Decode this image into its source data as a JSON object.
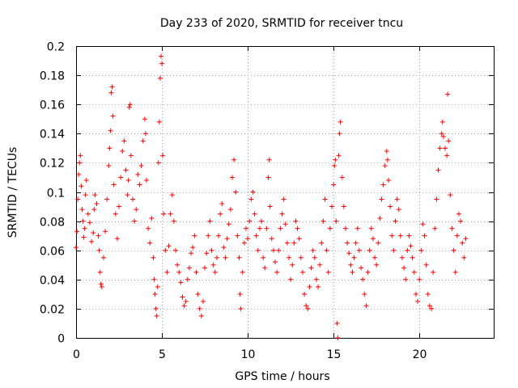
{
  "chart_data": {
    "type": "scatter",
    "title": "Day 233 of 2020, SRMTID for receiver tncu",
    "xlabel": "GPS time / hours",
    "ylabel": "SRMTID / TECUs",
    "xlim": [
      0,
      24.33
    ],
    "ylim": [
      0,
      0.2
    ],
    "xticks": [
      0,
      5,
      10,
      15,
      20
    ],
    "yticks": [
      0,
      0.02,
      0.04,
      0.06,
      0.08,
      0.1,
      0.12,
      0.14,
      0.16,
      0.18,
      0.2
    ],
    "xtick_labels": [
      "0",
      "5",
      "10",
      "15",
      "20"
    ],
    "ytick_labels": [
      "0",
      "0.02",
      "0.04",
      "0.06",
      "0.08",
      "0.1",
      "0.12",
      "0.14",
      "0.16",
      "0.18",
      "0.2"
    ],
    "grid": true,
    "marker": "+",
    "marker_color": "#ff0000",
    "x_range_of_data": [
      0,
      22.7
    ],
    "series": [
      {
        "values": [
          [
            0.0,
            0.062
          ],
          [
            0.05,
            0.073
          ],
          [
            0.1,
            0.095
          ],
          [
            0.15,
            0.112
          ],
          [
            0.2,
            0.12
          ],
          [
            0.25,
            0.125
          ],
          [
            0.3,
            0.104
          ],
          [
            0.35,
            0.088
          ],
          [
            0.4,
            0.08
          ],
          [
            0.45,
            0.069
          ],
          [
            0.5,
            0.075
          ],
          [
            0.55,
            0.098
          ],
          [
            0.6,
            0.108
          ],
          [
            0.7,
            0.085
          ],
          [
            0.8,
            0.079
          ],
          [
            0.9,
            0.066
          ],
          [
            1.0,
            0.072
          ],
          [
            1.05,
            0.088
          ],
          [
            1.1,
            0.098
          ],
          [
            1.2,
            0.092
          ],
          [
            1.3,
            0.07
          ],
          [
            1.35,
            0.06
          ],
          [
            1.4,
            0.045
          ],
          [
            1.45,
            0.037
          ],
          [
            1.5,
            0.035
          ],
          [
            1.6,
            0.055
          ],
          [
            1.7,
            0.073
          ],
          [
            1.8,
            0.095
          ],
          [
            1.9,
            0.118
          ],
          [
            1.95,
            0.13
          ],
          [
            2.0,
            0.142
          ],
          [
            2.05,
            0.168
          ],
          [
            2.1,
            0.172
          ],
          [
            2.15,
            0.152
          ],
          [
            2.2,
            0.105
          ],
          [
            2.3,
            0.085
          ],
          [
            2.4,
            0.068
          ],
          [
            2.5,
            0.09
          ],
          [
            2.6,
            0.11
          ],
          [
            2.7,
            0.128
          ],
          [
            2.8,
            0.135
          ],
          [
            2.9,
            0.115
          ],
          [
            3.0,
            0.098
          ],
          [
            3.05,
            0.108
          ],
          [
            3.1,
            0.158
          ],
          [
            3.15,
            0.16
          ],
          [
            3.2,
            0.125
          ],
          [
            3.3,
            0.095
          ],
          [
            3.4,
            0.08
          ],
          [
            3.5,
            0.088
          ],
          [
            3.6,
            0.112
          ],
          [
            3.7,
            0.105
          ],
          [
            3.8,
            0.118
          ],
          [
            3.9,
            0.135
          ],
          [
            4.0,
            0.15
          ],
          [
            4.05,
            0.14
          ],
          [
            4.1,
            0.108
          ],
          [
            4.2,
            0.075
          ],
          [
            4.3,
            0.065
          ],
          [
            4.4,
            0.082
          ],
          [
            4.5,
            0.055
          ],
          [
            4.55,
            0.04
          ],
          [
            4.6,
            0.03
          ],
          [
            4.65,
            0.02
          ],
          [
            4.7,
            0.015
          ],
          [
            4.75,
            0.035
          ],
          [
            4.8,
            0.12
          ],
          [
            4.85,
            0.148
          ],
          [
            4.9,
            0.178
          ],
          [
            4.95,
            0.193
          ],
          [
            5.0,
            0.188
          ],
          [
            5.05,
            0.125
          ],
          [
            5.1,
            0.085
          ],
          [
            5.2,
            0.06
          ],
          [
            5.3,
            0.045
          ],
          [
            5.4,
            0.063
          ],
          [
            5.5,
            0.085
          ],
          [
            5.6,
            0.098
          ],
          [
            5.7,
            0.08
          ],
          [
            5.8,
            0.06
          ],
          [
            5.9,
            0.05
          ],
          [
            6.0,
            0.045
          ],
          [
            6.1,
            0.038
          ],
          [
            6.2,
            0.028
          ],
          [
            6.3,
            0.022
          ],
          [
            6.4,
            0.025
          ],
          [
            6.5,
            0.04
          ],
          [
            6.6,
            0.048
          ],
          [
            6.7,
            0.058
          ],
          [
            6.8,
            0.062
          ],
          [
            6.9,
            0.07
          ],
          [
            7.0,
            0.045
          ],
          [
            7.1,
            0.03
          ],
          [
            7.2,
            0.02
          ],
          [
            7.3,
            0.015
          ],
          [
            7.4,
            0.025
          ],
          [
            7.5,
            0.048
          ],
          [
            7.6,
            0.058
          ],
          [
            7.7,
            0.07
          ],
          [
            7.8,
            0.08
          ],
          [
            7.9,
            0.06
          ],
          [
            8.0,
            0.05
          ],
          [
            8.1,
            0.045
          ],
          [
            8.2,
            0.055
          ],
          [
            8.3,
            0.07
          ],
          [
            8.4,
            0.085
          ],
          [
            8.5,
            0.092
          ],
          [
            8.6,
            0.062
          ],
          [
            8.7,
            0.055
          ],
          [
            8.8,
            0.068
          ],
          [
            8.9,
            0.078
          ],
          [
            9.0,
            0.088
          ],
          [
            9.1,
            0.11
          ],
          [
            9.2,
            0.122
          ],
          [
            9.3,
            0.1
          ],
          [
            9.4,
            0.07
          ],
          [
            9.5,
            0.055
          ],
          [
            9.55,
            0.03
          ],
          [
            9.6,
            0.02
          ],
          [
            9.7,
            0.045
          ],
          [
            9.8,
            0.065
          ],
          [
            9.9,
            0.075
          ],
          [
            10.0,
            0.068
          ],
          [
            10.1,
            0.08
          ],
          [
            10.2,
            0.095
          ],
          [
            10.3,
            0.1
          ],
          [
            10.4,
            0.085
          ],
          [
            10.5,
            0.07
          ],
          [
            10.6,
            0.06
          ],
          [
            10.7,
            0.075
          ],
          [
            10.8,
            0.08
          ],
          [
            10.9,
            0.055
          ],
          [
            11.0,
            0.048
          ],
          [
            11.1,
            0.075
          ],
          [
            11.2,
            0.11
          ],
          [
            11.25,
            0.122
          ],
          [
            11.3,
            0.09
          ],
          [
            11.4,
            0.068
          ],
          [
            11.5,
            0.06
          ],
          [
            11.6,
            0.052
          ],
          [
            11.7,
            0.045
          ],
          [
            11.8,
            0.06
          ],
          [
            11.9,
            0.075
          ],
          [
            12.0,
            0.085
          ],
          [
            12.1,
            0.095
          ],
          [
            12.2,
            0.078
          ],
          [
            12.3,
            0.065
          ],
          [
            12.4,
            0.055
          ],
          [
            12.5,
            0.04
          ],
          [
            12.6,
            0.05
          ],
          [
            12.7,
            0.065
          ],
          [
            12.8,
            0.08
          ],
          [
            12.9,
            0.075
          ],
          [
            13.0,
            0.068
          ],
          [
            13.1,
            0.055
          ],
          [
            13.2,
            0.045
          ],
          [
            13.3,
            0.03
          ],
          [
            13.4,
            0.022
          ],
          [
            13.5,
            0.02
          ],
          [
            13.6,
            0.035
          ],
          [
            13.7,
            0.048
          ],
          [
            13.8,
            0.06
          ],
          [
            13.9,
            0.055
          ],
          [
            14.0,
            0.04
          ],
          [
            14.1,
            0.035
          ],
          [
            14.2,
            0.05
          ],
          [
            14.3,
            0.065
          ],
          [
            14.4,
            0.08
          ],
          [
            14.5,
            0.095
          ],
          [
            14.6,
            0.06
          ],
          [
            14.7,
            0.045
          ],
          [
            14.8,
            0.075
          ],
          [
            14.9,
            0.09
          ],
          [
            15.0,
            0.105
          ],
          [
            15.05,
            0.118
          ],
          [
            15.1,
            0.122
          ],
          [
            15.15,
            0.08
          ],
          [
            15.2,
            0.01
          ],
          [
            15.25,
            0.0
          ],
          [
            15.3,
            0.125
          ],
          [
            15.35,
            0.14
          ],
          [
            15.4,
            0.148
          ],
          [
            15.5,
            0.11
          ],
          [
            15.6,
            0.09
          ],
          [
            15.7,
            0.075
          ],
          [
            15.8,
            0.065
          ],
          [
            15.9,
            0.058
          ],
          [
            16.0,
            0.05
          ],
          [
            16.1,
            0.045
          ],
          [
            16.2,
            0.055
          ],
          [
            16.3,
            0.065
          ],
          [
            16.4,
            0.075
          ],
          [
            16.5,
            0.06
          ],
          [
            16.6,
            0.048
          ],
          [
            16.7,
            0.04
          ],
          [
            16.8,
            0.03
          ],
          [
            16.9,
            0.022
          ],
          [
            17.0,
            0.045
          ],
          [
            17.1,
            0.06
          ],
          [
            17.2,
            0.075
          ],
          [
            17.3,
            0.068
          ],
          [
            17.4,
            0.055
          ],
          [
            17.5,
            0.05
          ],
          [
            17.6,
            0.065
          ],
          [
            17.7,
            0.082
          ],
          [
            17.8,
            0.095
          ],
          [
            17.9,
            0.105
          ],
          [
            18.0,
            0.118
          ],
          [
            18.1,
            0.128
          ],
          [
            18.15,
            0.122
          ],
          [
            18.2,
            0.108
          ],
          [
            18.3,
            0.09
          ],
          [
            18.4,
            0.07
          ],
          [
            18.5,
            0.06
          ],
          [
            18.6,
            0.08
          ],
          [
            18.7,
            0.095
          ],
          [
            18.8,
            0.088
          ],
          [
            18.9,
            0.07
          ],
          [
            19.0,
            0.055
          ],
          [
            19.1,
            0.048
          ],
          [
            19.2,
            0.04
          ],
          [
            19.3,
            0.06
          ],
          [
            19.4,
            0.07
          ],
          [
            19.5,
            0.063
          ],
          [
            19.6,
            0.055
          ],
          [
            19.7,
            0.045
          ],
          [
            19.8,
            0.03
          ],
          [
            19.9,
            0.025
          ],
          [
            20.0,
            0.04
          ],
          [
            20.1,
            0.06
          ],
          [
            20.2,
            0.078
          ],
          [
            20.3,
            0.07
          ],
          [
            20.4,
            0.05
          ],
          [
            20.5,
            0.03
          ],
          [
            20.6,
            0.022
          ],
          [
            20.7,
            0.02
          ],
          [
            20.8,
            0.045
          ],
          [
            20.9,
            0.075
          ],
          [
            21.0,
            0.095
          ],
          [
            21.1,
            0.115
          ],
          [
            21.2,
            0.13
          ],
          [
            21.3,
            0.14
          ],
          [
            21.35,
            0.148
          ],
          [
            21.4,
            0.138
          ],
          [
            21.5,
            0.13
          ],
          [
            21.6,
            0.125
          ],
          [
            21.65,
            0.167
          ],
          [
            21.7,
            0.135
          ],
          [
            21.8,
            0.098
          ],
          [
            21.9,
            0.075
          ],
          [
            22.0,
            0.06
          ],
          [
            22.1,
            0.045
          ],
          [
            22.2,
            0.07
          ],
          [
            22.3,
            0.085
          ],
          [
            22.4,
            0.08
          ],
          [
            22.5,
            0.065
          ],
          [
            22.6,
            0.055
          ],
          [
            22.7,
            0.068
          ]
        ]
      }
    ]
  }
}
